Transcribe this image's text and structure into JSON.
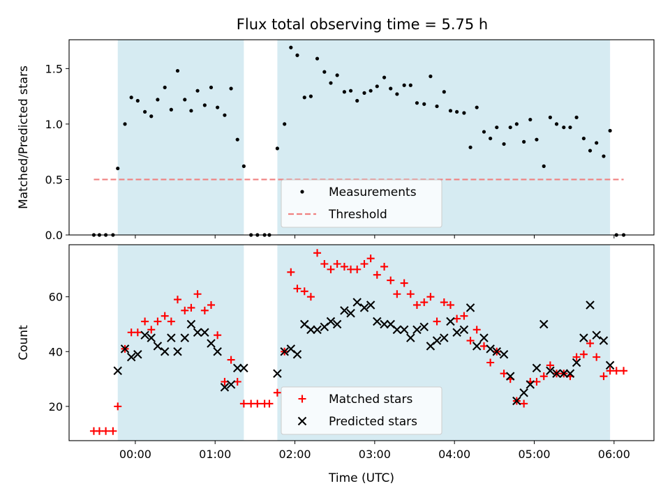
{
  "figure_title": "Flux total observing time = 5.75 h",
  "colors": {
    "observing_band": "#add8e6",
    "measurement": "#000000",
    "threshold": "#f08080",
    "matched": "#ff0000",
    "predicted": "#000000"
  },
  "chart_data": [
    {
      "type": "scatter",
      "title": "Flux total observing time = 5.75 h",
      "xlabel": "",
      "ylabel": "Matched/Predicted stars",
      "xlim": [
        -0.83,
        6.5
      ],
      "ylim": [
        0,
        1.76
      ],
      "yticks": [
        0.0,
        0.5,
        1.0,
        1.5
      ],
      "ytick_labels": [
        "0.0",
        "0.5",
        "1.0",
        "1.5"
      ],
      "xticks": [
        0,
        1,
        2,
        3,
        4,
        5,
        6
      ],
      "show_xtick_labels": false,
      "grid": false,
      "legend_position": "lower-center",
      "observing_windows": [
        [
          -0.22,
          1.36
        ],
        [
          1.78,
          5.95
        ]
      ],
      "series": [
        {
          "name": "Measurements",
          "kind": "dot",
          "x": [
            -0.52,
            -0.45,
            -0.37,
            -0.28,
            -0.22,
            -0.13,
            -0.05,
            0.03,
            0.12,
            0.2,
            0.28,
            0.37,
            0.45,
            0.53,
            0.62,
            0.7,
            0.78,
            0.87,
            0.95,
            1.03,
            1.12,
            1.2,
            1.28,
            1.36,
            1.45,
            1.53,
            1.62,
            1.68,
            1.78,
            1.87,
            1.95,
            2.03,
            2.12,
            2.2,
            2.28,
            2.37,
            2.45,
            2.53,
            2.62,
            2.7,
            2.78,
            2.87,
            2.95,
            3.03,
            3.12,
            3.2,
            3.28,
            3.37,
            3.45,
            3.53,
            3.62,
            3.7,
            3.78,
            3.87,
            3.95,
            4.03,
            4.12,
            4.2,
            4.28,
            4.37,
            4.45,
            4.53,
            4.62,
            4.7,
            4.78,
            4.87,
            4.95,
            5.03,
            5.12,
            5.2,
            5.28,
            5.37,
            5.45,
            5.53,
            5.62,
            5.7,
            5.78,
            5.87,
            5.95,
            6.03,
            6.12
          ],
          "y": [
            0,
            0,
            0,
            0,
            0.6,
            1.0,
            1.24,
            1.21,
            1.11,
            1.07,
            1.22,
            1.33,
            1.13,
            1.48,
            1.22,
            1.12,
            1.3,
            1.17,
            1.33,
            1.15,
            1.08,
            1.32,
            0.86,
            0.62,
            0,
            0,
            0,
            0,
            0.78,
            1.0,
            1.69,
            1.62,
            1.24,
            1.25,
            1.59,
            1.47,
            1.37,
            1.44,
            1.29,
            1.3,
            1.21,
            1.28,
            1.3,
            1.34,
            1.42,
            1.32,
            1.27,
            1.35,
            1.35,
            1.19,
            1.18,
            1.43,
            1.16,
            1.29,
            1.12,
            1.11,
            1.1,
            0.79,
            1.15,
            0.93,
            0.87,
            0.97,
            0.82,
            0.97,
            1.0,
            0.84,
            1.04,
            0.86,
            0.62,
            1.06,
            1.0,
            0.97,
            0.97,
            1.06,
            0.87,
            0.76,
            0.83,
            0.71,
            0.94,
            0,
            0
          ]
        },
        {
          "name": "Threshold",
          "kind": "dashed-line",
          "x": [
            -0.52,
            6.12
          ],
          "y": [
            0.5,
            0.5
          ]
        }
      ]
    },
    {
      "type": "scatter",
      "title": "",
      "xlabel": "Time (UTC)",
      "ylabel": "Count",
      "xlim": [
        -0.83,
        6.5
      ],
      "ylim": [
        7.5,
        79
      ],
      "yticks": [
        20,
        40,
        60
      ],
      "ytick_labels": [
        "20",
        "40",
        "60"
      ],
      "xticks": [
        0,
        1,
        2,
        3,
        4,
        5,
        6
      ],
      "xtick_labels": [
        "00:00",
        "01:00",
        "02:00",
        "03:00",
        "04:00",
        "05:00",
        "06:00"
      ],
      "grid": false,
      "legend_position": "lower-center",
      "observing_windows": [
        [
          -0.22,
          1.36
        ],
        [
          1.78,
          5.95
        ]
      ],
      "series": [
        {
          "name": "Matched stars",
          "kind": "plus",
          "x": [
            -0.52,
            -0.45,
            -0.37,
            -0.28,
            -0.22,
            -0.13,
            -0.05,
            0.03,
            0.12,
            0.2,
            0.28,
            0.37,
            0.45,
            0.53,
            0.62,
            0.7,
            0.78,
            0.87,
            0.95,
            1.03,
            1.12,
            1.2,
            1.28,
            1.36,
            1.45,
            1.53,
            1.62,
            1.68,
            1.78,
            1.87,
            1.95,
            2.03,
            2.12,
            2.2,
            2.28,
            2.37,
            2.45,
            2.53,
            2.62,
            2.7,
            2.78,
            2.87,
            2.95,
            3.03,
            3.12,
            3.2,
            3.28,
            3.37,
            3.45,
            3.53,
            3.62,
            3.7,
            3.78,
            3.87,
            3.95,
            4.03,
            4.12,
            4.2,
            4.28,
            4.37,
            4.45,
            4.53,
            4.62,
            4.7,
            4.78,
            4.87,
            4.95,
            5.03,
            5.12,
            5.2,
            5.28,
            5.37,
            5.45,
            5.53,
            5.62,
            5.7,
            5.78,
            5.87,
            5.95,
            6.03,
            6.12
          ],
          "y": [
            11,
            11,
            11,
            11,
            20,
            41,
            47,
            47,
            51,
            48,
            51,
            53,
            51,
            59,
            55,
            56,
            61,
            55,
            57,
            46,
            29,
            37,
            29,
            21,
            21,
            21,
            21,
            21,
            25,
            40,
            69,
            63,
            62,
            60,
            76,
            72,
            70,
            72,
            71,
            70,
            70,
            72,
            74,
            68,
            71,
            66,
            61,
            65,
            61,
            57,
            58,
            60,
            51,
            58,
            57,
            52,
            53,
            44,
            48,
            42,
            36,
            40,
            32,
            30,
            22,
            21,
            29,
            29,
            31,
            35,
            32,
            32,
            31,
            38,
            39,
            43,
            38,
            31,
            33,
            33,
            33
          ]
        },
        {
          "name": "Predicted stars",
          "kind": "x",
          "x": [
            -0.22,
            -0.13,
            -0.05,
            0.03,
            0.12,
            0.2,
            0.28,
            0.37,
            0.45,
            0.53,
            0.62,
            0.7,
            0.78,
            0.87,
            0.95,
            1.03,
            1.12,
            1.2,
            1.28,
            1.36,
            1.78,
            1.87,
            1.95,
            2.03,
            2.12,
            2.2,
            2.28,
            2.37,
            2.45,
            2.53,
            2.62,
            2.7,
            2.78,
            2.87,
            2.95,
            3.03,
            3.12,
            3.2,
            3.28,
            3.37,
            3.45,
            3.53,
            3.62,
            3.7,
            3.78,
            3.87,
            3.95,
            4.03,
            4.12,
            4.2,
            4.28,
            4.37,
            4.45,
            4.53,
            4.62,
            4.7,
            4.78,
            4.87,
            4.95,
            5.03,
            5.12,
            5.2,
            5.28,
            5.37,
            5.45,
            5.53,
            5.62,
            5.7,
            5.78,
            5.87,
            5.95
          ],
          "y": [
            33,
            41,
            38,
            39,
            46,
            45,
            42,
            40,
            45,
            40,
            45,
            50,
            47,
            47,
            43,
            40,
            27,
            28,
            34,
            34,
            32,
            40,
            41,
            39,
            50,
            48,
            48,
            49,
            51,
            50,
            55,
            54,
            58,
            56,
            57,
            51,
            50,
            50,
            48,
            48,
            45,
            48,
            49,
            42,
            44,
            45,
            51,
            47,
            48,
            56,
            42,
            45,
            41,
            40,
            39,
            31,
            22,
            25,
            28,
            34,
            50,
            33,
            32,
            32,
            32,
            36,
            45,
            57,
            46,
            44,
            35
          ]
        }
      ]
    }
  ]
}
